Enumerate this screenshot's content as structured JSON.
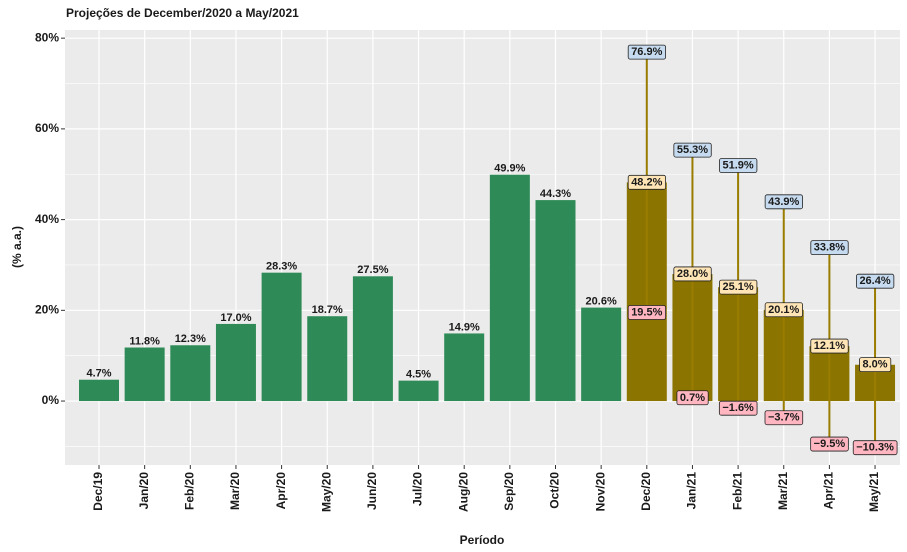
{
  "chart_data": {
    "type": "bar",
    "title": "Projeções de December/2020 a May/2021",
    "x_label": "Período",
    "y_label": "(% a.a.)",
    "categories": [
      "Dec/19",
      "Jan/20",
      "Feb/20",
      "Mar/20",
      "Apr/20",
      "May/20",
      "Jun/20",
      "Jul/20",
      "Aug/20",
      "Sep/20",
      "Oct/20",
      "Nov/20",
      "Dec/20",
      "Jan/21",
      "Feb/21",
      "Mar/21",
      "Apr/21",
      "May/21"
    ],
    "values": [
      4.7,
      11.8,
      12.3,
      17.0,
      28.3,
      18.7,
      27.5,
      4.5,
      14.9,
      49.9,
      44.3,
      20.6,
      48.2,
      28.0,
      25.1,
      20.1,
      12.1,
      8.0
    ],
    "value_labels": [
      "4.7%",
      "11.8%",
      "12.3%",
      "17.0%",
      "28.3%",
      "18.7%",
      "27.5%",
      "4.5%",
      "14.9%",
      "49.9%",
      "44.3%",
      "20.6%",
      "48.2%",
      "28.0%",
      "25.1%",
      "20.1%",
      "12.1%",
      "8.0%"
    ],
    "colors": [
      "#2e8b57",
      "#2e8b57",
      "#2e8b57",
      "#2e8b57",
      "#2e8b57",
      "#2e8b57",
      "#2e8b57",
      "#2e8b57",
      "#2e8b57",
      "#2e8b57",
      "#2e8b57",
      "#2e8b57",
      "#8b7500",
      "#8b7500",
      "#8b7500",
      "#8b7500",
      "#8b7500",
      "#8b7500"
    ],
    "upper": [
      null,
      null,
      null,
      null,
      null,
      null,
      null,
      null,
      null,
      null,
      null,
      null,
      76.9,
      55.3,
      51.9,
      43.9,
      33.8,
      26.4
    ],
    "upper_labels": [
      null,
      null,
      null,
      null,
      null,
      null,
      null,
      null,
      null,
      null,
      null,
      null,
      "76.9%",
      "55.3%",
      "51.9%",
      "43.9%",
      "33.8%",
      "26.4%"
    ],
    "lower": [
      null,
      null,
      null,
      null,
      null,
      null,
      null,
      null,
      null,
      null,
      null,
      null,
      19.5,
      0.7,
      -1.6,
      -3.7,
      -9.5,
      -10.3
    ],
    "lower_labels": [
      null,
      null,
      null,
      null,
      null,
      null,
      null,
      null,
      null,
      null,
      null,
      null,
      "19.5%",
      "0.7%",
      "−1.6%",
      "−3.7%",
      "−9.5%",
      "−10.3%"
    ],
    "ylim": [
      -14.1,
      81.8
    ],
    "yticks": [
      {
        "value": 0,
        "label": "0%"
      },
      {
        "value": 20,
        "label": "20%"
      },
      {
        "value": 40,
        "label": "40%"
      },
      {
        "value": 60,
        "label": "60%"
      },
      {
        "value": 80,
        "label": "80%"
      }
    ],
    "grid": true
  }
}
